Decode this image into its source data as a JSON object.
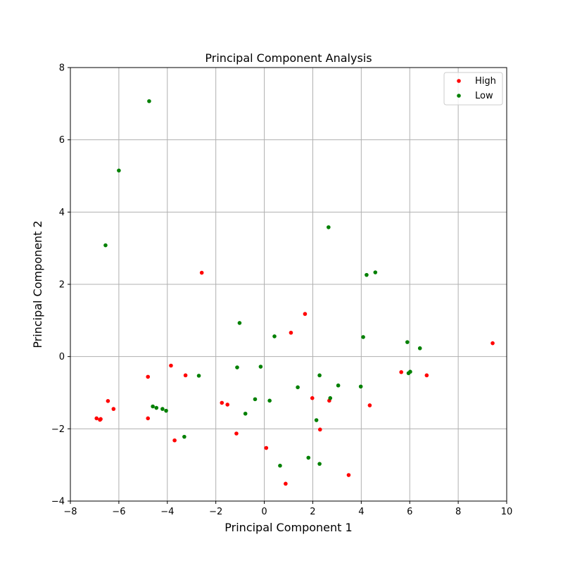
{
  "chart_data": {
    "type": "scatter",
    "title": "Principal Component Analysis",
    "xlabel": "Principal Component 1",
    "ylabel": "Principal Component 2",
    "xlim": [
      -8,
      10
    ],
    "ylim": [
      -4,
      8
    ],
    "xticks": [
      -8,
      -6,
      -4,
      -2,
      0,
      2,
      4,
      6,
      8,
      10
    ],
    "yticks": [
      -4,
      -2,
      0,
      2,
      4,
      6,
      8
    ],
    "grid": true,
    "legend_position": "top-right",
    "series": [
      {
        "name": "High",
        "color": "#ff0000",
        "points": [
          [
            -6.92,
            -1.71
          ],
          [
            -6.78,
            -1.75
          ],
          [
            -6.75,
            -1.73
          ],
          [
            -6.45,
            -1.23
          ],
          [
            -6.22,
            -1.45
          ],
          [
            -4.8,
            -0.56
          ],
          [
            -4.8,
            -1.71
          ],
          [
            -3.85,
            -0.25
          ],
          [
            -3.7,
            -2.32
          ],
          [
            -3.25,
            -0.52
          ],
          [
            -2.58,
            2.32
          ],
          [
            -1.75,
            -1.28
          ],
          [
            -1.52,
            -1.33
          ],
          [
            -1.15,
            -2.13
          ],
          [
            0.08,
            -2.53
          ],
          [
            0.88,
            -3.52
          ],
          [
            1.1,
            0.66
          ],
          [
            1.68,
            1.18
          ],
          [
            1.98,
            -1.15
          ],
          [
            2.3,
            -2.02
          ],
          [
            2.68,
            -1.22
          ],
          [
            3.48,
            -3.28
          ],
          [
            4.35,
            -1.35
          ],
          [
            5.65,
            -0.43
          ],
          [
            6.7,
            -0.52
          ],
          [
            9.42,
            0.37
          ]
        ]
      },
      {
        "name": "Low",
        "color": "#008000",
        "points": [
          [
            -4.75,
            7.07
          ],
          [
            -6.0,
            5.15
          ],
          [
            -6.55,
            3.08
          ],
          [
            -4.6,
            -1.38
          ],
          [
            -4.45,
            -1.42
          ],
          [
            -4.2,
            -1.45
          ],
          [
            -4.05,
            -1.5
          ],
          [
            -3.3,
            -2.22
          ],
          [
            -2.7,
            -0.53
          ],
          [
            -1.12,
            -0.3
          ],
          [
            -1.02,
            0.93
          ],
          [
            -0.78,
            -1.58
          ],
          [
            -0.38,
            -1.18
          ],
          [
            -0.15,
            -0.28
          ],
          [
            0.22,
            -1.22
          ],
          [
            0.42,
            0.56
          ],
          [
            0.65,
            -3.02
          ],
          [
            1.38,
            -0.85
          ],
          [
            1.82,
            -2.8
          ],
          [
            2.15,
            -1.76
          ],
          [
            2.28,
            -0.52
          ],
          [
            2.28,
            -2.97
          ],
          [
            2.65,
            3.58
          ],
          [
            2.72,
            -1.15
          ],
          [
            3.05,
            -0.8
          ],
          [
            3.98,
            -0.83
          ],
          [
            4.08,
            0.54
          ],
          [
            4.22,
            2.26
          ],
          [
            4.58,
            2.33
          ],
          [
            5.9,
            0.4
          ],
          [
            5.95,
            -0.46
          ],
          [
            6.02,
            -0.42
          ],
          [
            6.42,
            0.23
          ]
        ]
      }
    ]
  }
}
